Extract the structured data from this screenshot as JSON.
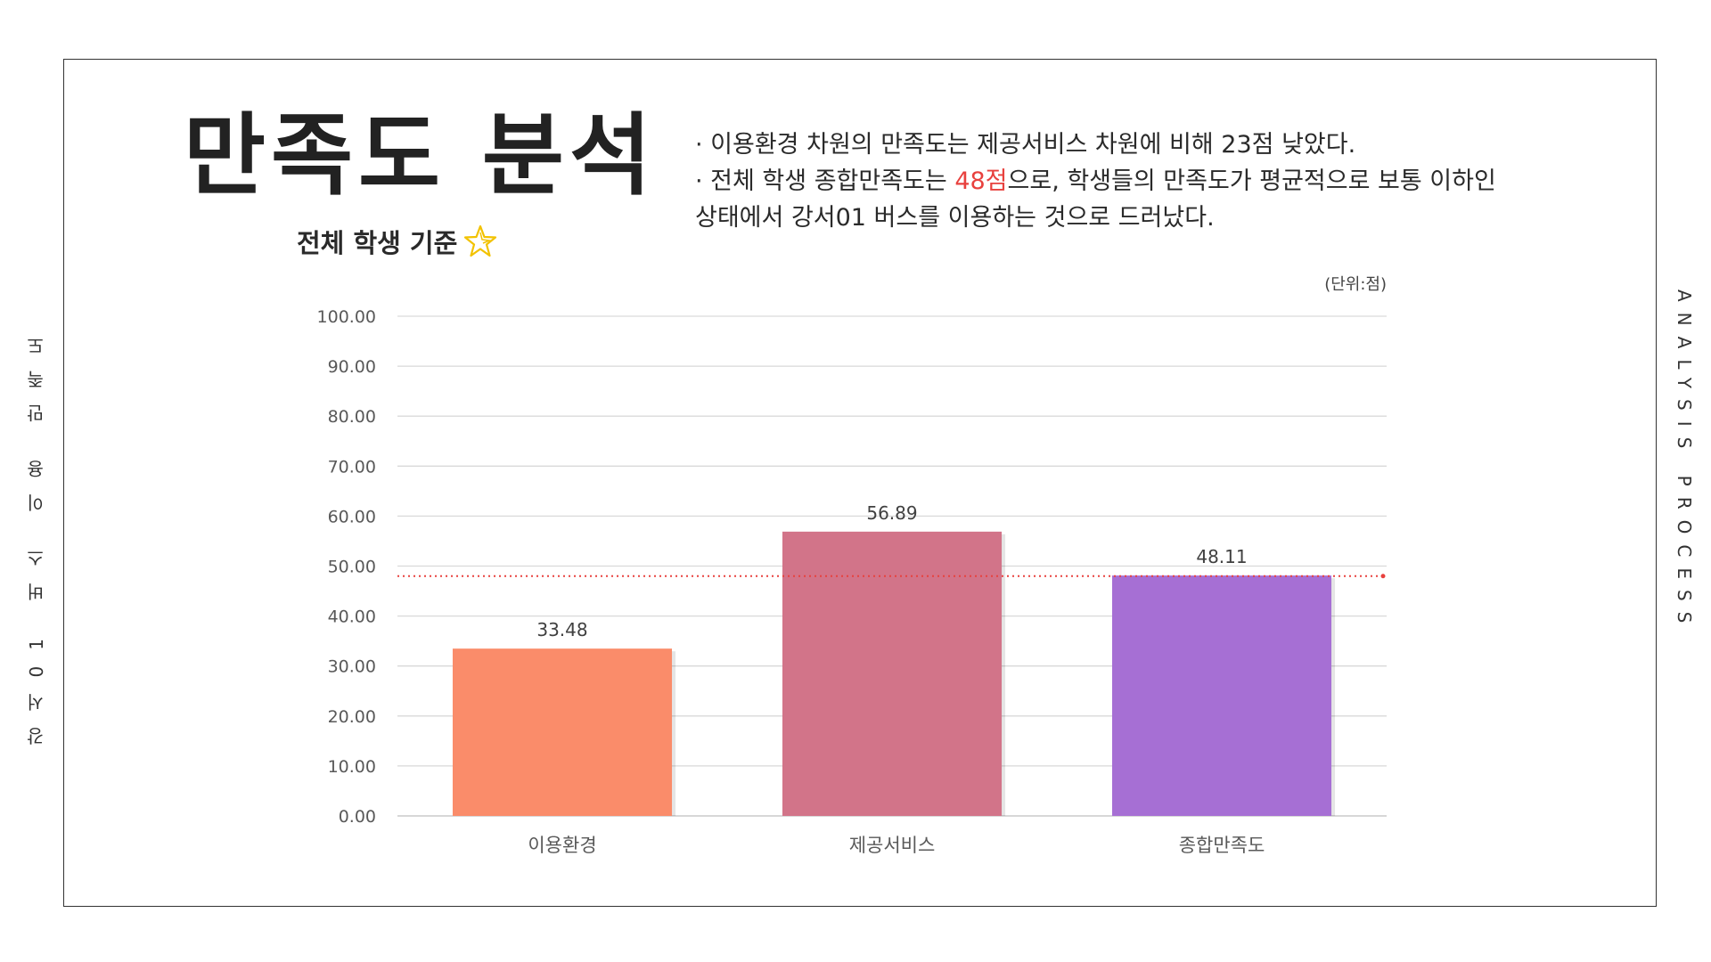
{
  "page": {
    "title": "만족도 분석",
    "subtitle": "전체 학생 기준",
    "notes": [
      "· 이용환경 차원의 만족도는 제공서비스 차원에 비해 23점 낮았다.",
      "· 전체 학생 종합만족도는 ",
      "48점",
      "으로, 학생들의 만족도가 평균적으로 보통 이하인",
      "상태에서 강서01 버스를 이용하는 것으로 드러났다."
    ],
    "side_left": "강서01 버스 이용 만족도",
    "side_right": "ANALYSIS PROCESS",
    "unit": "(단위:점)"
  },
  "chart_data": {
    "type": "bar",
    "categories": [
      "이용환경",
      "제공서비스",
      "종합만족도"
    ],
    "values": [
      33.48,
      56.89,
      48.11
    ],
    "value_labels": [
      "33.48",
      "56.89",
      "48.11"
    ],
    "colors": [
      "#fa8c6a",
      "#d27489",
      "#a66fd4"
    ],
    "ylim": [
      0,
      100
    ],
    "yticks": [
      "0.00",
      "10.00",
      "20.00",
      "30.00",
      "40.00",
      "50.00",
      "60.00",
      "70.00",
      "80.00",
      "90.00",
      "100.00"
    ],
    "reference_line": {
      "value": 48,
      "color": "#e8413e",
      "style": "dotted"
    },
    "grid": true,
    "gridline_color": "#d9d9d9"
  }
}
